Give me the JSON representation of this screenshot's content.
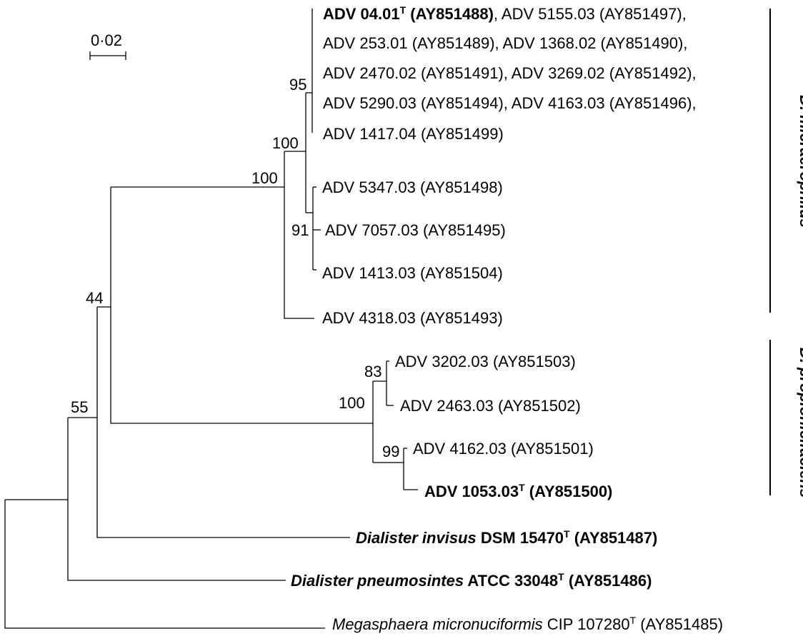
{
  "scale_bar": {
    "label": "0·02"
  },
  "bootstrap_values": {
    "n95": "95",
    "n100_inner": "100",
    "n100_outer": "100",
    "n91": "91",
    "n44": "44",
    "n83": "83",
    "n100_prop": "100",
    "n99": "99",
    "n55": "55"
  },
  "taxa": {
    "l1a": "ADV 04.01",
    "l1a_sup": "T",
    "l1b": " (AY851488)",
    "l1c": ", ADV 5155.03 (AY851497),",
    "l2": "ADV 253.01 (AY851489), ADV 1368.02 (AY851490),",
    "l3": "ADV 2470.02 (AY851491), ADV 3269.02 (AY851492),",
    "l4": "ADV 5290.03 (AY851494), ADV 4163.03 (AY851496),",
    "l5": "ADV 1417.04 (AY851499)",
    "adv5347": "ADV 5347.03 (AY851498)",
    "adv7057": "ADV 7057.03 (AY851495)",
    "adv1413": "ADV 1413.03 (AY851504)",
    "adv4318": "ADV 4318.03 (AY851493)",
    "adv3202": "ADV 3202.03 (AY851503)",
    "adv2463": "ADV 2463.03 (AY851502)",
    "adv4162": "ADV 4162.03 (AY851501)",
    "adv1053": "ADV 1053.03",
    "adv1053_sup": "T",
    "adv1053_acc": " (AY851500)",
    "invisus_genus": "Dialister invisus",
    "invisus_strain": " DSM 15470",
    "invisus_sup": "T",
    "invisus_acc": " (AY851487)",
    "pneumo_genus": "Dialister pneumosintes",
    "pneumo_strain": " ATCC 33048",
    "pneumo_sup": "T",
    "pneumo_acc": " (AY851486)",
    "mega_genus": "Megasphaera micronuciformis",
    "mega_strain": " CIP 107280",
    "mega_sup": "T",
    "mega_acc": " (AY851485)"
  },
  "clades": {
    "micraerophilus": "D. micraerophilus",
    "propionicifaciens": "D. propionicifaciens"
  }
}
